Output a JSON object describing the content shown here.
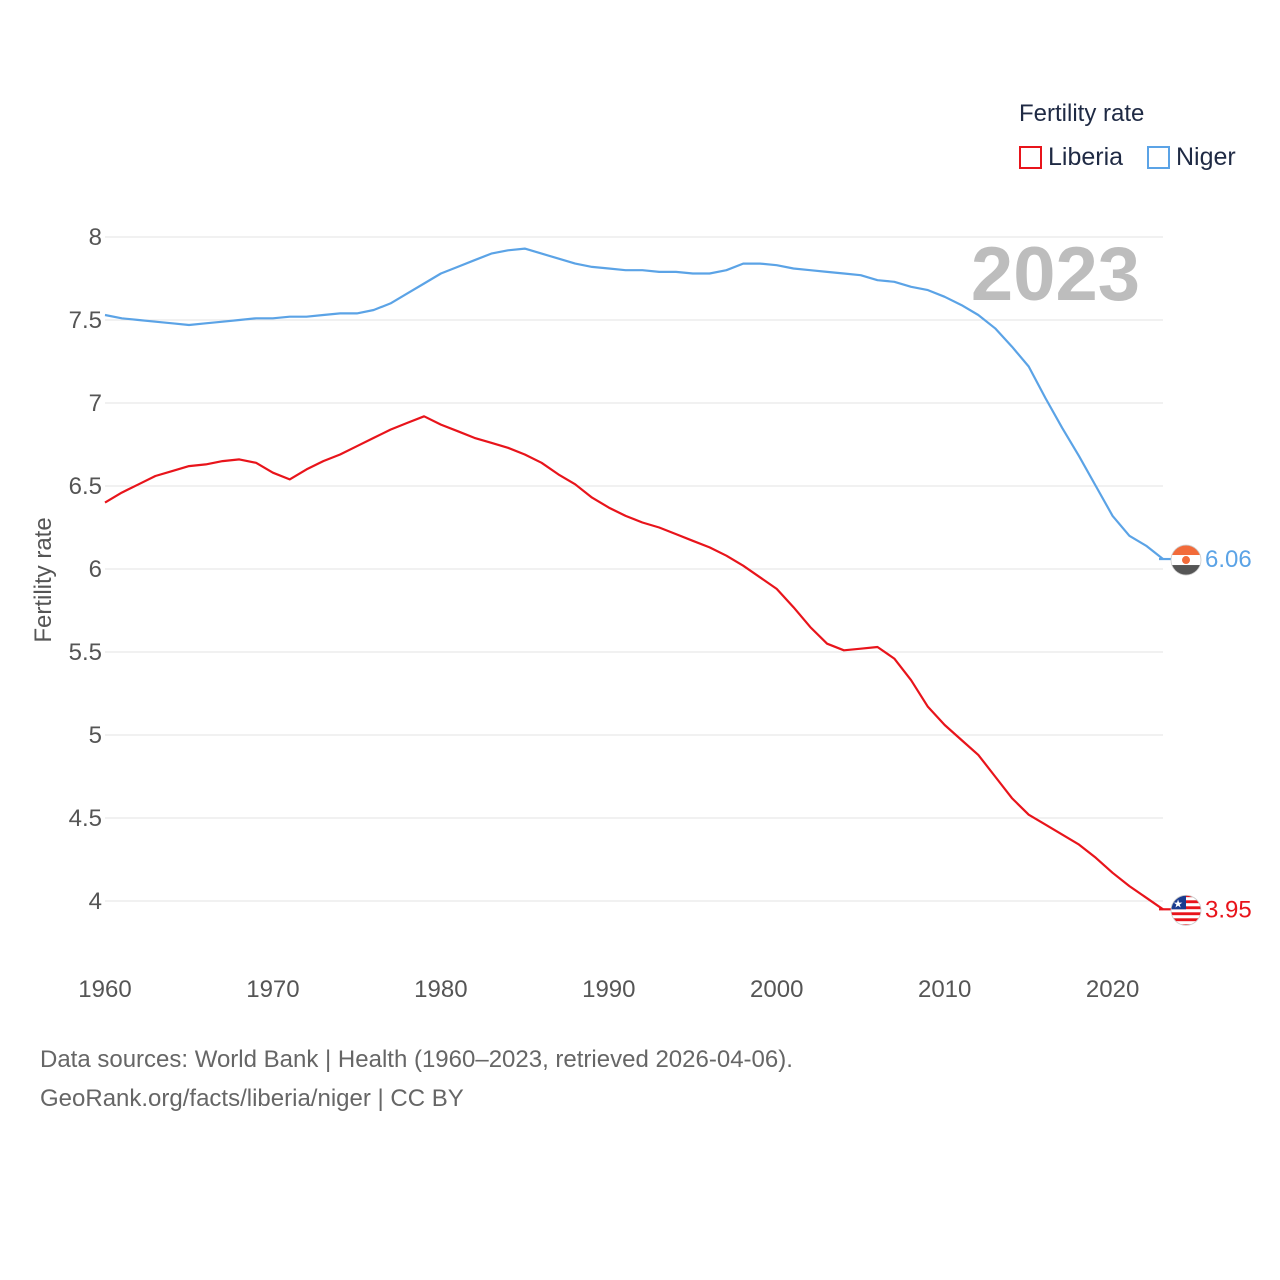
{
  "chart_data": {
    "type": "line",
    "title": "",
    "ylabel": "Fertility rate",
    "xlabel": "",
    "xlim": [
      1960,
      2023
    ],
    "ylim": [
      3.75,
      8.15
    ],
    "x_ticks": [
      1960,
      1970,
      1980,
      1990,
      2000,
      2010,
      2020
    ],
    "y_ticks": [
      4,
      4.5,
      5,
      5.5,
      6,
      6.5,
      7,
      7.5,
      8
    ],
    "year_label": "2023",
    "legend": {
      "title": "Fertility rate",
      "position": "top-right"
    },
    "x": [
      1960,
      1961,
      1962,
      1963,
      1964,
      1965,
      1966,
      1967,
      1968,
      1969,
      1970,
      1971,
      1972,
      1973,
      1974,
      1975,
      1976,
      1977,
      1978,
      1979,
      1980,
      1981,
      1982,
      1983,
      1984,
      1985,
      1986,
      1987,
      1988,
      1989,
      1990,
      1991,
      1992,
      1993,
      1994,
      1995,
      1996,
      1997,
      1998,
      1999,
      2000,
      2001,
      2002,
      2003,
      2004,
      2005,
      2006,
      2007,
      2008,
      2009,
      2010,
      2011,
      2012,
      2013,
      2014,
      2015,
      2016,
      2017,
      2018,
      2019,
      2020,
      2021,
      2022,
      2023
    ],
    "series": [
      {
        "name": "Liberia",
        "color": "#e8141b",
        "end_label": "3.95",
        "flag": "liberia-flag",
        "values": [
          6.4,
          6.46,
          6.51,
          6.56,
          6.59,
          6.62,
          6.63,
          6.65,
          6.66,
          6.64,
          6.58,
          6.54,
          6.6,
          6.65,
          6.69,
          6.74,
          6.79,
          6.84,
          6.88,
          6.92,
          6.87,
          6.83,
          6.79,
          6.76,
          6.73,
          6.69,
          6.64,
          6.57,
          6.51,
          6.43,
          6.37,
          6.32,
          6.28,
          6.25,
          6.21,
          6.17,
          6.13,
          6.08,
          6.02,
          5.95,
          5.88,
          5.77,
          5.65,
          5.55,
          5.51,
          5.52,
          5.53,
          5.46,
          5.33,
          5.17,
          5.06,
          4.97,
          4.88,
          4.75,
          4.62,
          4.52,
          4.46,
          4.4,
          4.34,
          4.26,
          4.17,
          4.09,
          4.02,
          3.95
        ]
      },
      {
        "name": "Niger",
        "color": "#5ba3e6",
        "end_label": "6.06",
        "flag": "niger-flag",
        "values": [
          7.53,
          7.51,
          7.5,
          7.49,
          7.48,
          7.47,
          7.48,
          7.49,
          7.5,
          7.51,
          7.51,
          7.52,
          7.52,
          7.53,
          7.54,
          7.54,
          7.56,
          7.6,
          7.66,
          7.72,
          7.78,
          7.82,
          7.86,
          7.9,
          7.92,
          7.93,
          7.9,
          7.87,
          7.84,
          7.82,
          7.81,
          7.8,
          7.8,
          7.79,
          7.79,
          7.78,
          7.78,
          7.8,
          7.84,
          7.84,
          7.83,
          7.81,
          7.8,
          7.79,
          7.78,
          7.77,
          7.74,
          7.73,
          7.7,
          7.68,
          7.64,
          7.59,
          7.53,
          7.45,
          7.34,
          7.22,
          7.03,
          6.85,
          6.68,
          6.5,
          6.32,
          6.2,
          6.14,
          6.06
        ]
      }
    ]
  },
  "footer": {
    "line1": "Data sources: World Bank | Health (1960–2023, retrieved 2026-04-06).",
    "line2": "GeoRank.org/facts/liberia/niger | CC BY"
  }
}
